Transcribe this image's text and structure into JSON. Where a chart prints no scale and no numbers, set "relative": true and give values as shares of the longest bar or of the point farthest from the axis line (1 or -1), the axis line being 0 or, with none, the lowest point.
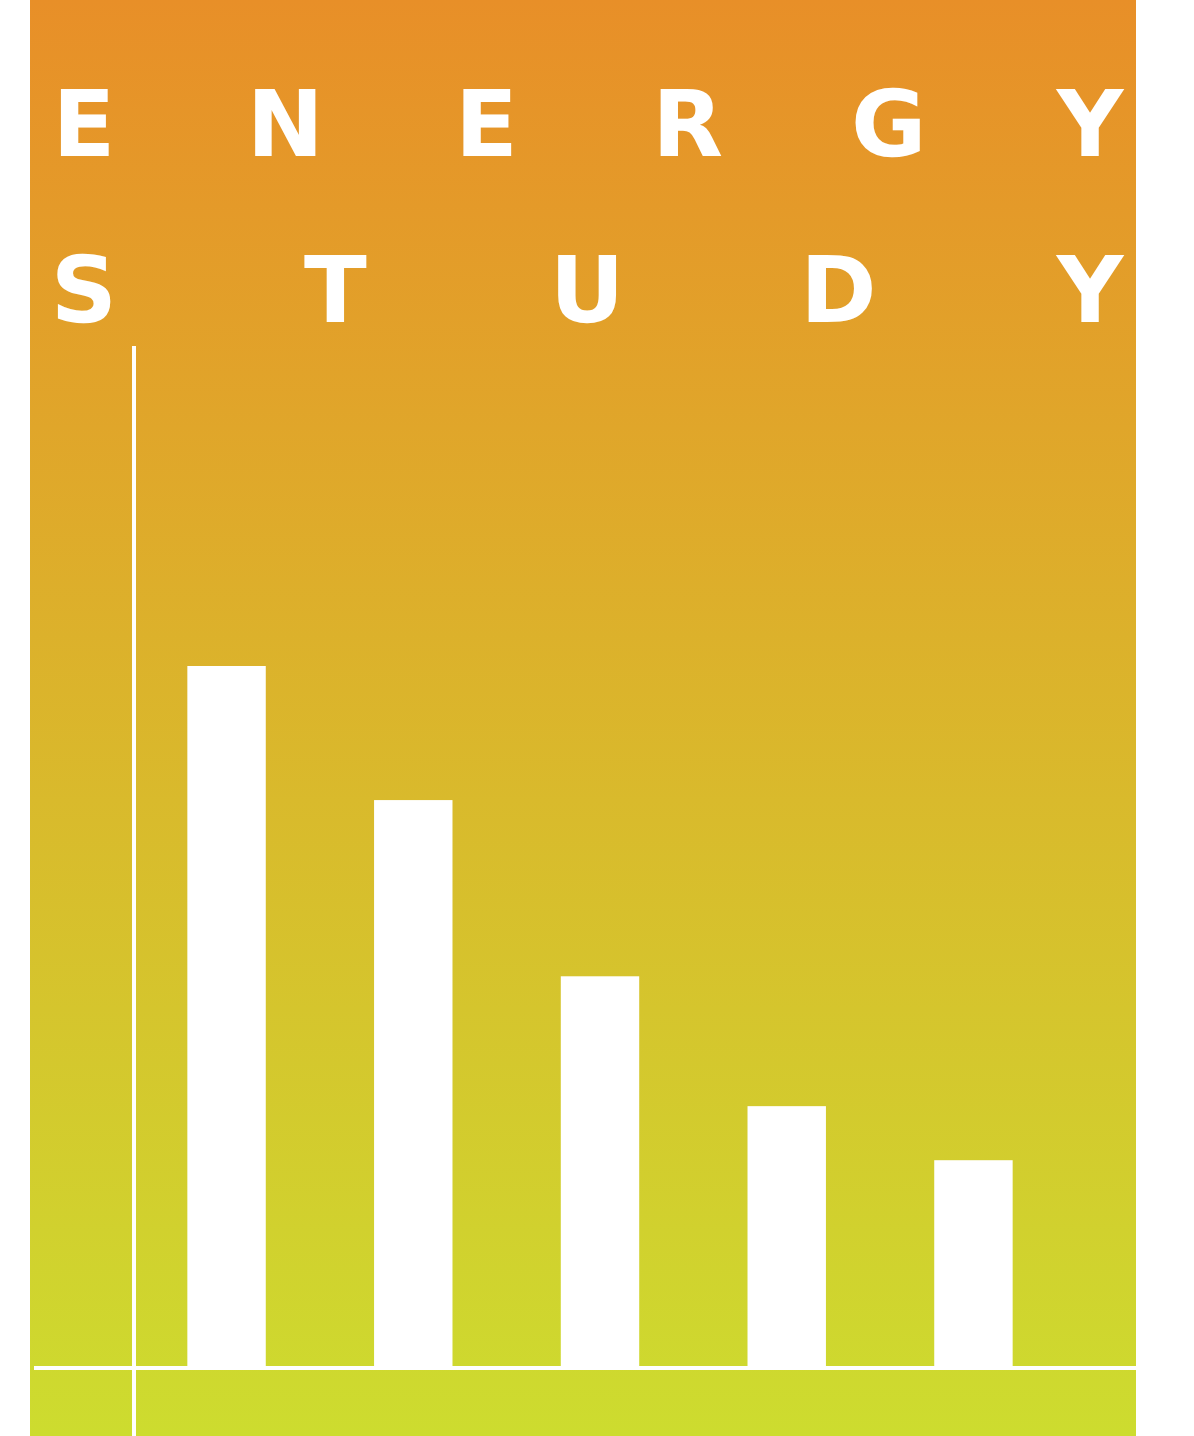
{
  "chart_data": {
    "type": "bar",
    "title": "ENERGY STUDY",
    "relative": true,
    "categories": [
      null,
      null,
      null,
      null,
      null
    ],
    "color": "#ffffff",
    "values": [
      1,
      0.809,
      0.558,
      0.373,
      0.296
    ]
  }
}
